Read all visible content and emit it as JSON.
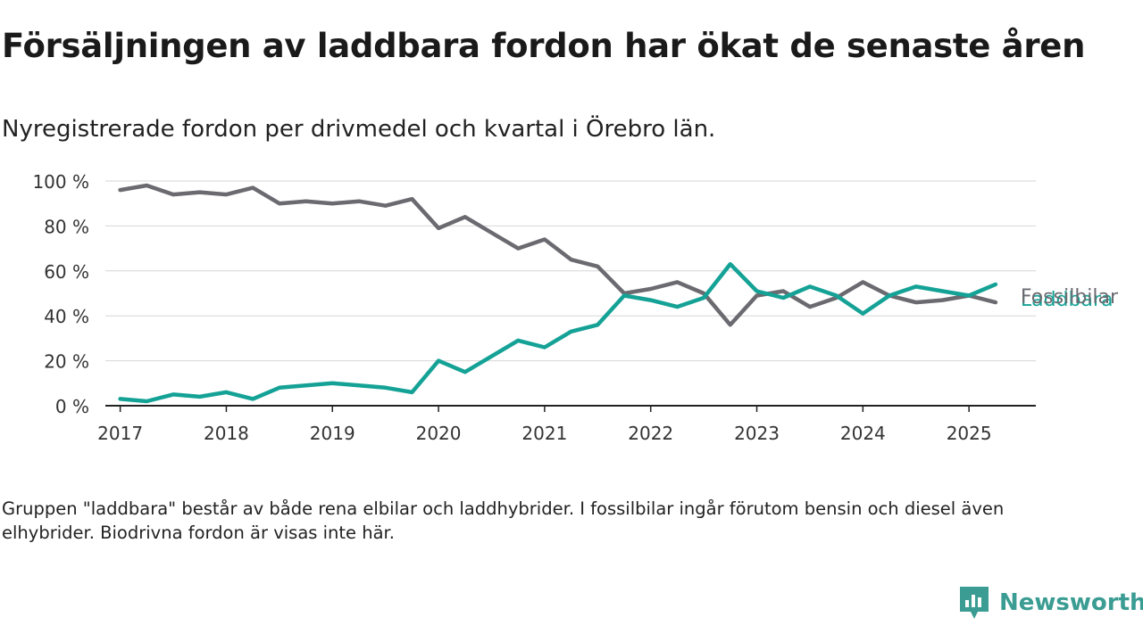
{
  "title": "Försäljningen av laddbara fordon har ökat de senaste åren",
  "subtitle": "Nyregistrerade fordon per drivmedel och kvartal i Örebro län.",
  "footnote": "Gruppen \"laddbara\" består av både rena elbilar och laddhybrider. I fossilbilar ingår förutom bensin och diesel även elhybrider. Biodrivna fordon är visas inte här.",
  "brand": {
    "name": "Newsworthy",
    "color": "#3a9c92",
    "icon": "newsworthy-logo-icon"
  },
  "chart_data": {
    "type": "line",
    "x": [
      2017.0,
      2017.25,
      2017.5,
      2017.75,
      2018.0,
      2018.25,
      2018.5,
      2018.75,
      2019.0,
      2019.25,
      2019.5,
      2019.75,
      2020.0,
      2020.25,
      2020.5,
      2020.75,
      2021.0,
      2021.25,
      2021.5,
      2021.75,
      2022.0,
      2022.25,
      2022.5,
      2022.75,
      2023.0,
      2023.25,
      2023.5,
      2023.75,
      2024.0,
      2024.25,
      2024.5,
      2024.75,
      2025.0,
      2025.25
    ],
    "xticks": [
      2017,
      2018,
      2019,
      2020,
      2021,
      2022,
      2023,
      2024,
      2025
    ],
    "xlim": [
      2016.86,
      2025.63
    ],
    "ylim": [
      0,
      100
    ],
    "yticks": [
      0,
      20,
      40,
      60,
      80,
      100
    ],
    "ytick_labels": [
      "0 %",
      "20 %",
      "40 %",
      "60 %",
      "80 %",
      "100 %"
    ],
    "grid": true,
    "series": [
      {
        "name": "Fossilbilar",
        "color": "#6b6a70",
        "values": [
          96,
          98,
          94,
          95,
          94,
          97,
          90,
          91,
          90,
          91,
          89,
          92,
          79,
          84,
          77,
          70,
          74,
          65,
          62,
          50,
          52,
          55,
          50,
          36,
          49,
          51,
          44,
          48,
          55,
          49,
          46,
          47,
          49,
          46
        ]
      },
      {
        "name": "Laddbara",
        "color": "#15a296",
        "values": [
          3,
          2,
          5,
          4,
          6,
          3,
          8,
          9,
          10,
          9,
          8,
          6,
          20,
          15,
          22,
          29,
          26,
          33,
          36,
          49,
          47,
          44,
          48,
          63,
          51,
          48,
          53,
          49,
          41,
          49,
          53,
          51,
          49,
          54
        ]
      }
    ]
  }
}
